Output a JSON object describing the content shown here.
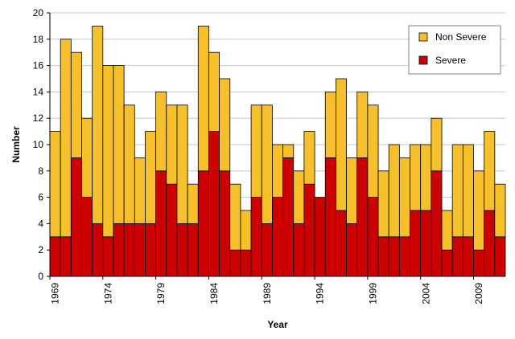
{
  "chart_data": {
    "type": "bar",
    "stacked": true,
    "xlabel": "Year",
    "ylabel": "Number",
    "ylim": [
      0,
      20
    ],
    "yticks": [
      0,
      2,
      4,
      6,
      8,
      10,
      12,
      14,
      16,
      18,
      20
    ],
    "grid": "horizontal",
    "legend_position": "top-right",
    "categories": [
      1969,
      1970,
      1971,
      1972,
      1973,
      1974,
      1975,
      1976,
      1977,
      1978,
      1979,
      1980,
      1981,
      1982,
      1983,
      1984,
      1985,
      1986,
      1987,
      1988,
      1989,
      1990,
      1991,
      1992,
      1993,
      1994,
      1995,
      1996,
      1997,
      1998,
      1999,
      2000,
      2001,
      2002,
      2003,
      2004,
      2005,
      2006,
      2007,
      2008,
      2009,
      2010,
      2011
    ],
    "tick_labels": [
      "1969",
      "1974",
      "1979",
      "1984",
      "1989",
      "1994",
      "1999",
      "2004",
      "2009"
    ],
    "series": [
      {
        "name": "Severe",
        "color": "#cc0000",
        "values": [
          3,
          3,
          9,
          6,
          4,
          3,
          4,
          4,
          4,
          4,
          8,
          7,
          4,
          4,
          8,
          11,
          8,
          2,
          2,
          6,
          4,
          6,
          9,
          4,
          7,
          6,
          9,
          5,
          4,
          9,
          6,
          3,
          3,
          3,
          5,
          5,
          8,
          2,
          3,
          3,
          2,
          5,
          3
        ]
      },
      {
        "name": "Non Severe",
        "color": "#f5c02c",
        "values": [
          8,
          15,
          8,
          6,
          15,
          13,
          12,
          9,
          5,
          7,
          6,
          6,
          9,
          3,
          11,
          6,
          7,
          5,
          3,
          7,
          9,
          4,
          1,
          4,
          4,
          0,
          5,
          10,
          5,
          5,
          7,
          5,
          7,
          6,
          5,
          5,
          4,
          3,
          7,
          7,
          6,
          6,
          4
        ]
      }
    ]
  }
}
